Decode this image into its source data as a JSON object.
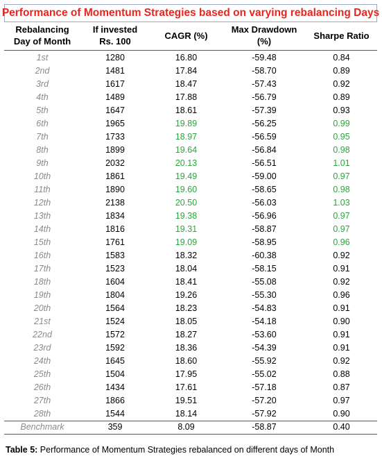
{
  "title": "Performance of Momentum Strategies based on varying rebalancing Days",
  "columns": {
    "day": [
      "Rebalancing",
      "Day of Month"
    ],
    "invested": [
      "If invested",
      "Rs. 100"
    ],
    "cagr": [
      "CAGR (%)"
    ],
    "drawdown": [
      "Max Drawdown",
      "(%)"
    ],
    "sharpe": [
      "Sharpe Ratio"
    ]
  },
  "highlight_color": "#2aa53a",
  "rows": [
    {
      "day": "1st",
      "invested": "1280",
      "cagr": "16.80",
      "drawdown": "-59.48",
      "sharpe": "0.84",
      "highlight": false
    },
    {
      "day": "2nd",
      "invested": "1481",
      "cagr": "17.84",
      "drawdown": "-58.70",
      "sharpe": "0.89",
      "highlight": false
    },
    {
      "day": "3rd",
      "invested": "1617",
      "cagr": "18.47",
      "drawdown": "-57.43",
      "sharpe": "0.92",
      "highlight": false
    },
    {
      "day": "4th",
      "invested": "1489",
      "cagr": "17.88",
      "drawdown": "-56.79",
      "sharpe": "0.89",
      "highlight": false
    },
    {
      "day": "5th",
      "invested": "1647",
      "cagr": "18.61",
      "drawdown": "-57.39",
      "sharpe": "0.93",
      "highlight": false
    },
    {
      "day": "6th",
      "invested": "1965",
      "cagr": "19.89",
      "drawdown": "-56.25",
      "sharpe": "0.99",
      "highlight": true
    },
    {
      "day": "7th",
      "invested": "1733",
      "cagr": "18.97",
      "drawdown": "-56.59",
      "sharpe": "0.95",
      "highlight": true
    },
    {
      "day": "8th",
      "invested": "1899",
      "cagr": "19.64",
      "drawdown": "-56.84",
      "sharpe": "0.98",
      "highlight": true
    },
    {
      "day": "9th",
      "invested": "2032",
      "cagr": "20.13",
      "drawdown": "-56.51",
      "sharpe": "1.01",
      "highlight": true
    },
    {
      "day": "10th",
      "invested": "1861",
      "cagr": "19.49",
      "drawdown": "-59.00",
      "sharpe": "0.97",
      "highlight": true
    },
    {
      "day": "11th",
      "invested": "1890",
      "cagr": "19.60",
      "drawdown": "-58.65",
      "sharpe": "0.98",
      "highlight": true
    },
    {
      "day": "12th",
      "invested": "2138",
      "cagr": "20.50",
      "drawdown": "-56.03",
      "sharpe": "1.03",
      "highlight": true
    },
    {
      "day": "13th",
      "invested": "1834",
      "cagr": "19.38",
      "drawdown": "-56.96",
      "sharpe": "0.97",
      "highlight": true
    },
    {
      "day": "14th",
      "invested": "1816",
      "cagr": "19.31",
      "drawdown": "-58.87",
      "sharpe": "0.97",
      "highlight": true
    },
    {
      "day": "15th",
      "invested": "1761",
      "cagr": "19.09",
      "drawdown": "-58.95",
      "sharpe": "0.96",
      "highlight": true
    },
    {
      "day": "16th",
      "invested": "1583",
      "cagr": "18.32",
      "drawdown": "-60.38",
      "sharpe": "0.92",
      "highlight": false
    },
    {
      "day": "17th",
      "invested": "1523",
      "cagr": "18.04",
      "drawdown": "-58.15",
      "sharpe": "0.91",
      "highlight": false
    },
    {
      "day": "18th",
      "invested": "1604",
      "cagr": "18.41",
      "drawdown": "-55.08",
      "sharpe": "0.92",
      "highlight": false
    },
    {
      "day": "19th",
      "invested": "1804",
      "cagr": "19.26",
      "drawdown": "-55.30",
      "sharpe": "0.96",
      "highlight": false
    },
    {
      "day": "20th",
      "invested": "1564",
      "cagr": "18.23",
      "drawdown": "-54.83",
      "sharpe": "0.91",
      "highlight": false
    },
    {
      "day": "21st",
      "invested": "1524",
      "cagr": "18.05",
      "drawdown": "-54.18",
      "sharpe": "0.90",
      "highlight": false
    },
    {
      "day": "22nd",
      "invested": "1572",
      "cagr": "18.27",
      "drawdown": "-53.60",
      "sharpe": "0.91",
      "highlight": false
    },
    {
      "day": "23rd",
      "invested": "1592",
      "cagr": "18.36",
      "drawdown": "-54.39",
      "sharpe": "0.91",
      "highlight": false
    },
    {
      "day": "24th",
      "invested": "1645",
      "cagr": "18.60",
      "drawdown": "-55.92",
      "sharpe": "0.92",
      "highlight": false
    },
    {
      "day": "25th",
      "invested": "1504",
      "cagr": "17.95",
      "drawdown": "-55.02",
      "sharpe": "0.88",
      "highlight": false
    },
    {
      "day": "26th",
      "invested": "1434",
      "cagr": "17.61",
      "drawdown": "-57.18",
      "sharpe": "0.87",
      "highlight": false
    },
    {
      "day": "27th",
      "invested": "1866",
      "cagr": "19.51",
      "drawdown": "-57.20",
      "sharpe": "0.97",
      "highlight": false
    },
    {
      "day": "28th",
      "invested": "1544",
      "cagr": "18.14",
      "drawdown": "-57.92",
      "sharpe": "0.90",
      "highlight": false
    }
  ],
  "benchmark": {
    "day": "Benchmark",
    "invested": "359",
    "cagr": "8.09",
    "drawdown": "-58.87",
    "sharpe": "0.40"
  },
  "caption": {
    "label": "Table 5:",
    "text": " Performance of Momentum Strategies rebalanced on different days of Month"
  }
}
